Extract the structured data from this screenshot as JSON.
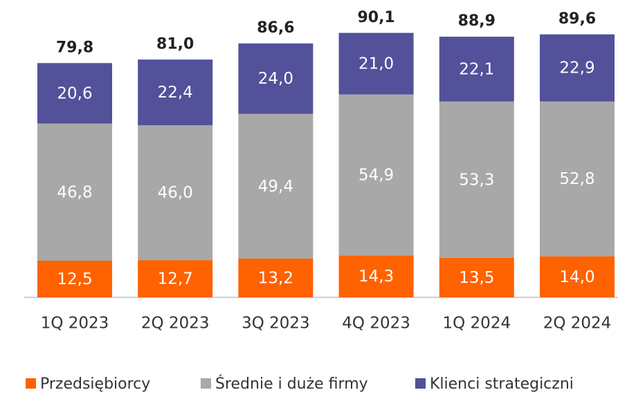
{
  "chart_data": {
    "type": "stacked_bar",
    "categories": [
      "1Q 2023",
      "2Q 2023",
      "3Q 2023",
      "4Q 2023",
      "1Q 2024",
      "2Q 2024"
    ],
    "series": [
      {
        "name": "Przedsiębiorcy",
        "color": "#ff6200",
        "values": [
          12.5,
          12.7,
          13.2,
          14.3,
          13.5,
          14.0
        ],
        "value_labels": [
          "12,5",
          "12,7",
          "13,2",
          "14,3",
          "13,5",
          "14,0"
        ]
      },
      {
        "name": "Średnie i duże firmy",
        "color": "#a8a8a8",
        "values": [
          46.8,
          46.0,
          49.4,
          54.9,
          53.3,
          52.8
        ],
        "value_labels": [
          "46,8",
          "46,0",
          "49,4",
          "54,9",
          "53,3",
          "52,8"
        ]
      },
      {
        "name": "Klienci strategiczni",
        "color": "#525199",
        "values": [
          20.6,
          22.4,
          24.0,
          21.0,
          22.1,
          22.9
        ],
        "value_labels": [
          "20,6",
          "22,4",
          "24,0",
          "21,0",
          "22,1",
          "22,9"
        ]
      }
    ],
    "totals": [
      79.8,
      81.0,
      86.6,
      90.1,
      88.9,
      89.6
    ],
    "total_value_labels": [
      "79,8",
      "81,0",
      "86,6",
      "90,1",
      "88,9",
      "89,6"
    ],
    "ylim": [
      0,
      100
    ]
  }
}
